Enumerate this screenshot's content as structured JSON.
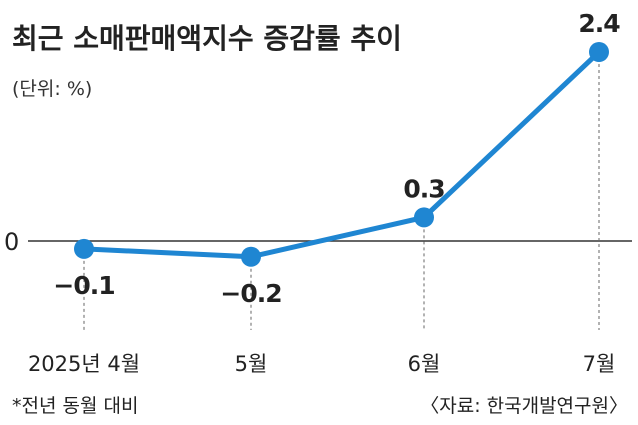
{
  "chart_data": {
    "type": "line",
    "title": "최근 소매판매액지수 증감률 추이",
    "unit_label": "(단위: %)",
    "categories": [
      "2025년 4월",
      "5월",
      "6월",
      "7월"
    ],
    "series": [
      {
        "values": [
          -0.1,
          -0.2,
          0.3,
          2.4
        ]
      }
    ],
    "value_labels": [
      "−0.1",
      "−0.2",
      "0.3",
      "2.4"
    ],
    "zero_label": "0",
    "footnote": "*전년 동월 대비",
    "source": "〈자료: 한국개발연구원〉",
    "ylim": [
      -0.2,
      2.4
    ],
    "grid": false,
    "colors": {
      "line": "#1f86d2",
      "axis": "#333333"
    }
  }
}
